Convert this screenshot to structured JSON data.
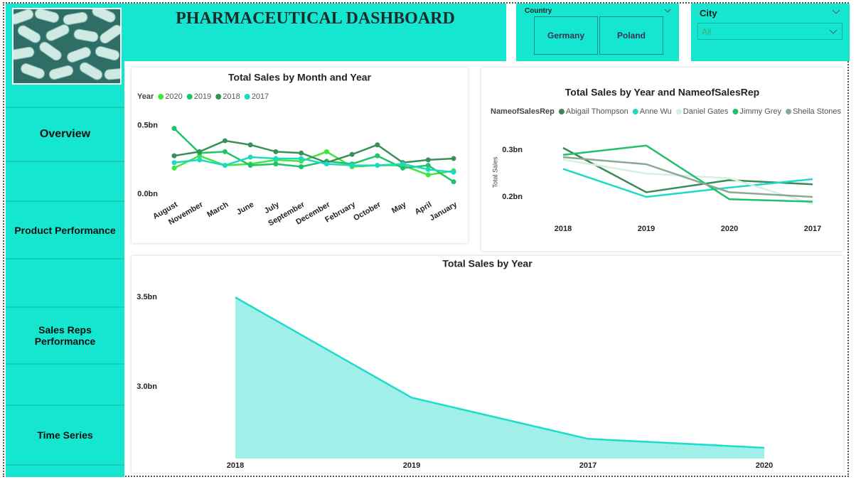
{
  "header": {
    "title": "PHARMACEUTICAL DASHBOARD"
  },
  "nav": [
    "Overview",
    "Product Performance",
    "Sales Reps Performance",
    "Time Series"
  ],
  "filters": {
    "country": {
      "label": "Country",
      "options": [
        "Germany",
        "Poland"
      ]
    },
    "city": {
      "label": "City",
      "value": "All"
    }
  },
  "chart_data": [
    {
      "type": "line",
      "title": "Total Sales by Month and Year",
      "legend_title": "Year",
      "markers": true,
      "grid": false,
      "categories": [
        "August",
        "November",
        "March",
        "June",
        "July",
        "September",
        "December",
        "February",
        "October",
        "May",
        "April",
        "January"
      ],
      "ylim": [
        0,
        0.53
      ],
      "yticks": [
        {
          "value": 0,
          "label": "0.0bn"
        },
        {
          "value": 0.5,
          "label": "0.5bn"
        }
      ],
      "series": [
        {
          "name": "2020",
          "color": "#3de83d",
          "values": [
            0.19,
            0.28,
            0.21,
            0.22,
            0.25,
            0.24,
            0.31,
            0.2,
            0.21,
            0.21,
            0.14,
            0.17
          ]
        },
        {
          "name": "2019",
          "color": "#1fc46a",
          "values": [
            0.48,
            0.3,
            0.31,
            0.21,
            0.22,
            0.2,
            0.24,
            0.22,
            0.28,
            0.19,
            0.21,
            0.09
          ]
        },
        {
          "name": "2018",
          "color": "#3a8f58",
          "values": [
            0.28,
            0.31,
            0.39,
            0.36,
            0.31,
            0.3,
            0.23,
            0.29,
            0.36,
            0.23,
            0.25,
            0.26
          ]
        },
        {
          "name": "2017",
          "color": "#1dd9c0",
          "values": [
            0.23,
            0.25,
            0.21,
            0.27,
            0.26,
            0.26,
            0.22,
            0.21,
            0.21,
            0.22,
            0.18,
            0.16
          ]
        }
      ]
    },
    {
      "type": "line",
      "title": "Total Sales by Year and NameofSalesRep",
      "legend_title": "NameofSalesRep",
      "y_label": "Total Sales",
      "markers": false,
      "grid": false,
      "categories": [
        "2018",
        "2019",
        "2020",
        "2017"
      ],
      "ylim": [
        0.165,
        0.34
      ],
      "yticks": [
        {
          "value": 0.2,
          "label": "0.2bn"
        },
        {
          "value": 0.3,
          "label": "0.3bn"
        }
      ],
      "series": [
        {
          "name": "Abigail Thompson",
          "color": "#3a8a55",
          "values": [
            0.305,
            0.21,
            0.236,
            0.227
          ]
        },
        {
          "name": "Anne Wu",
          "color": "#1dd9c9",
          "values": [
            0.26,
            0.2,
            0.22,
            0.238
          ]
        },
        {
          "name": "Daniel Gates",
          "color": "#d3f1e2",
          "values": [
            0.28,
            0.25,
            0.24,
            0.185
          ]
        },
        {
          "name": "Jimmy Grey",
          "color": "#22c06a",
          "values": [
            0.29,
            0.31,
            0.195,
            0.19
          ]
        },
        {
          "name": "Sheila Stones",
          "color": "#8aa892",
          "values": [
            0.285,
            0.27,
            0.21,
            0.2
          ]
        }
      ]
    },
    {
      "type": "area",
      "title": "Total Sales by Year",
      "grid": false,
      "color": "#1ddccb",
      "categories": [
        "2018",
        "2019",
        "2017",
        "2020"
      ],
      "ylim": [
        2.6,
        3.62
      ],
      "yticks": [
        {
          "value": 3,
          "label": "3.0bn"
        },
        {
          "value": 3.5,
          "label": "3.5bn"
        }
      ],
      "values": [
        3.5,
        2.94,
        2.71,
        2.66
      ]
    }
  ]
}
